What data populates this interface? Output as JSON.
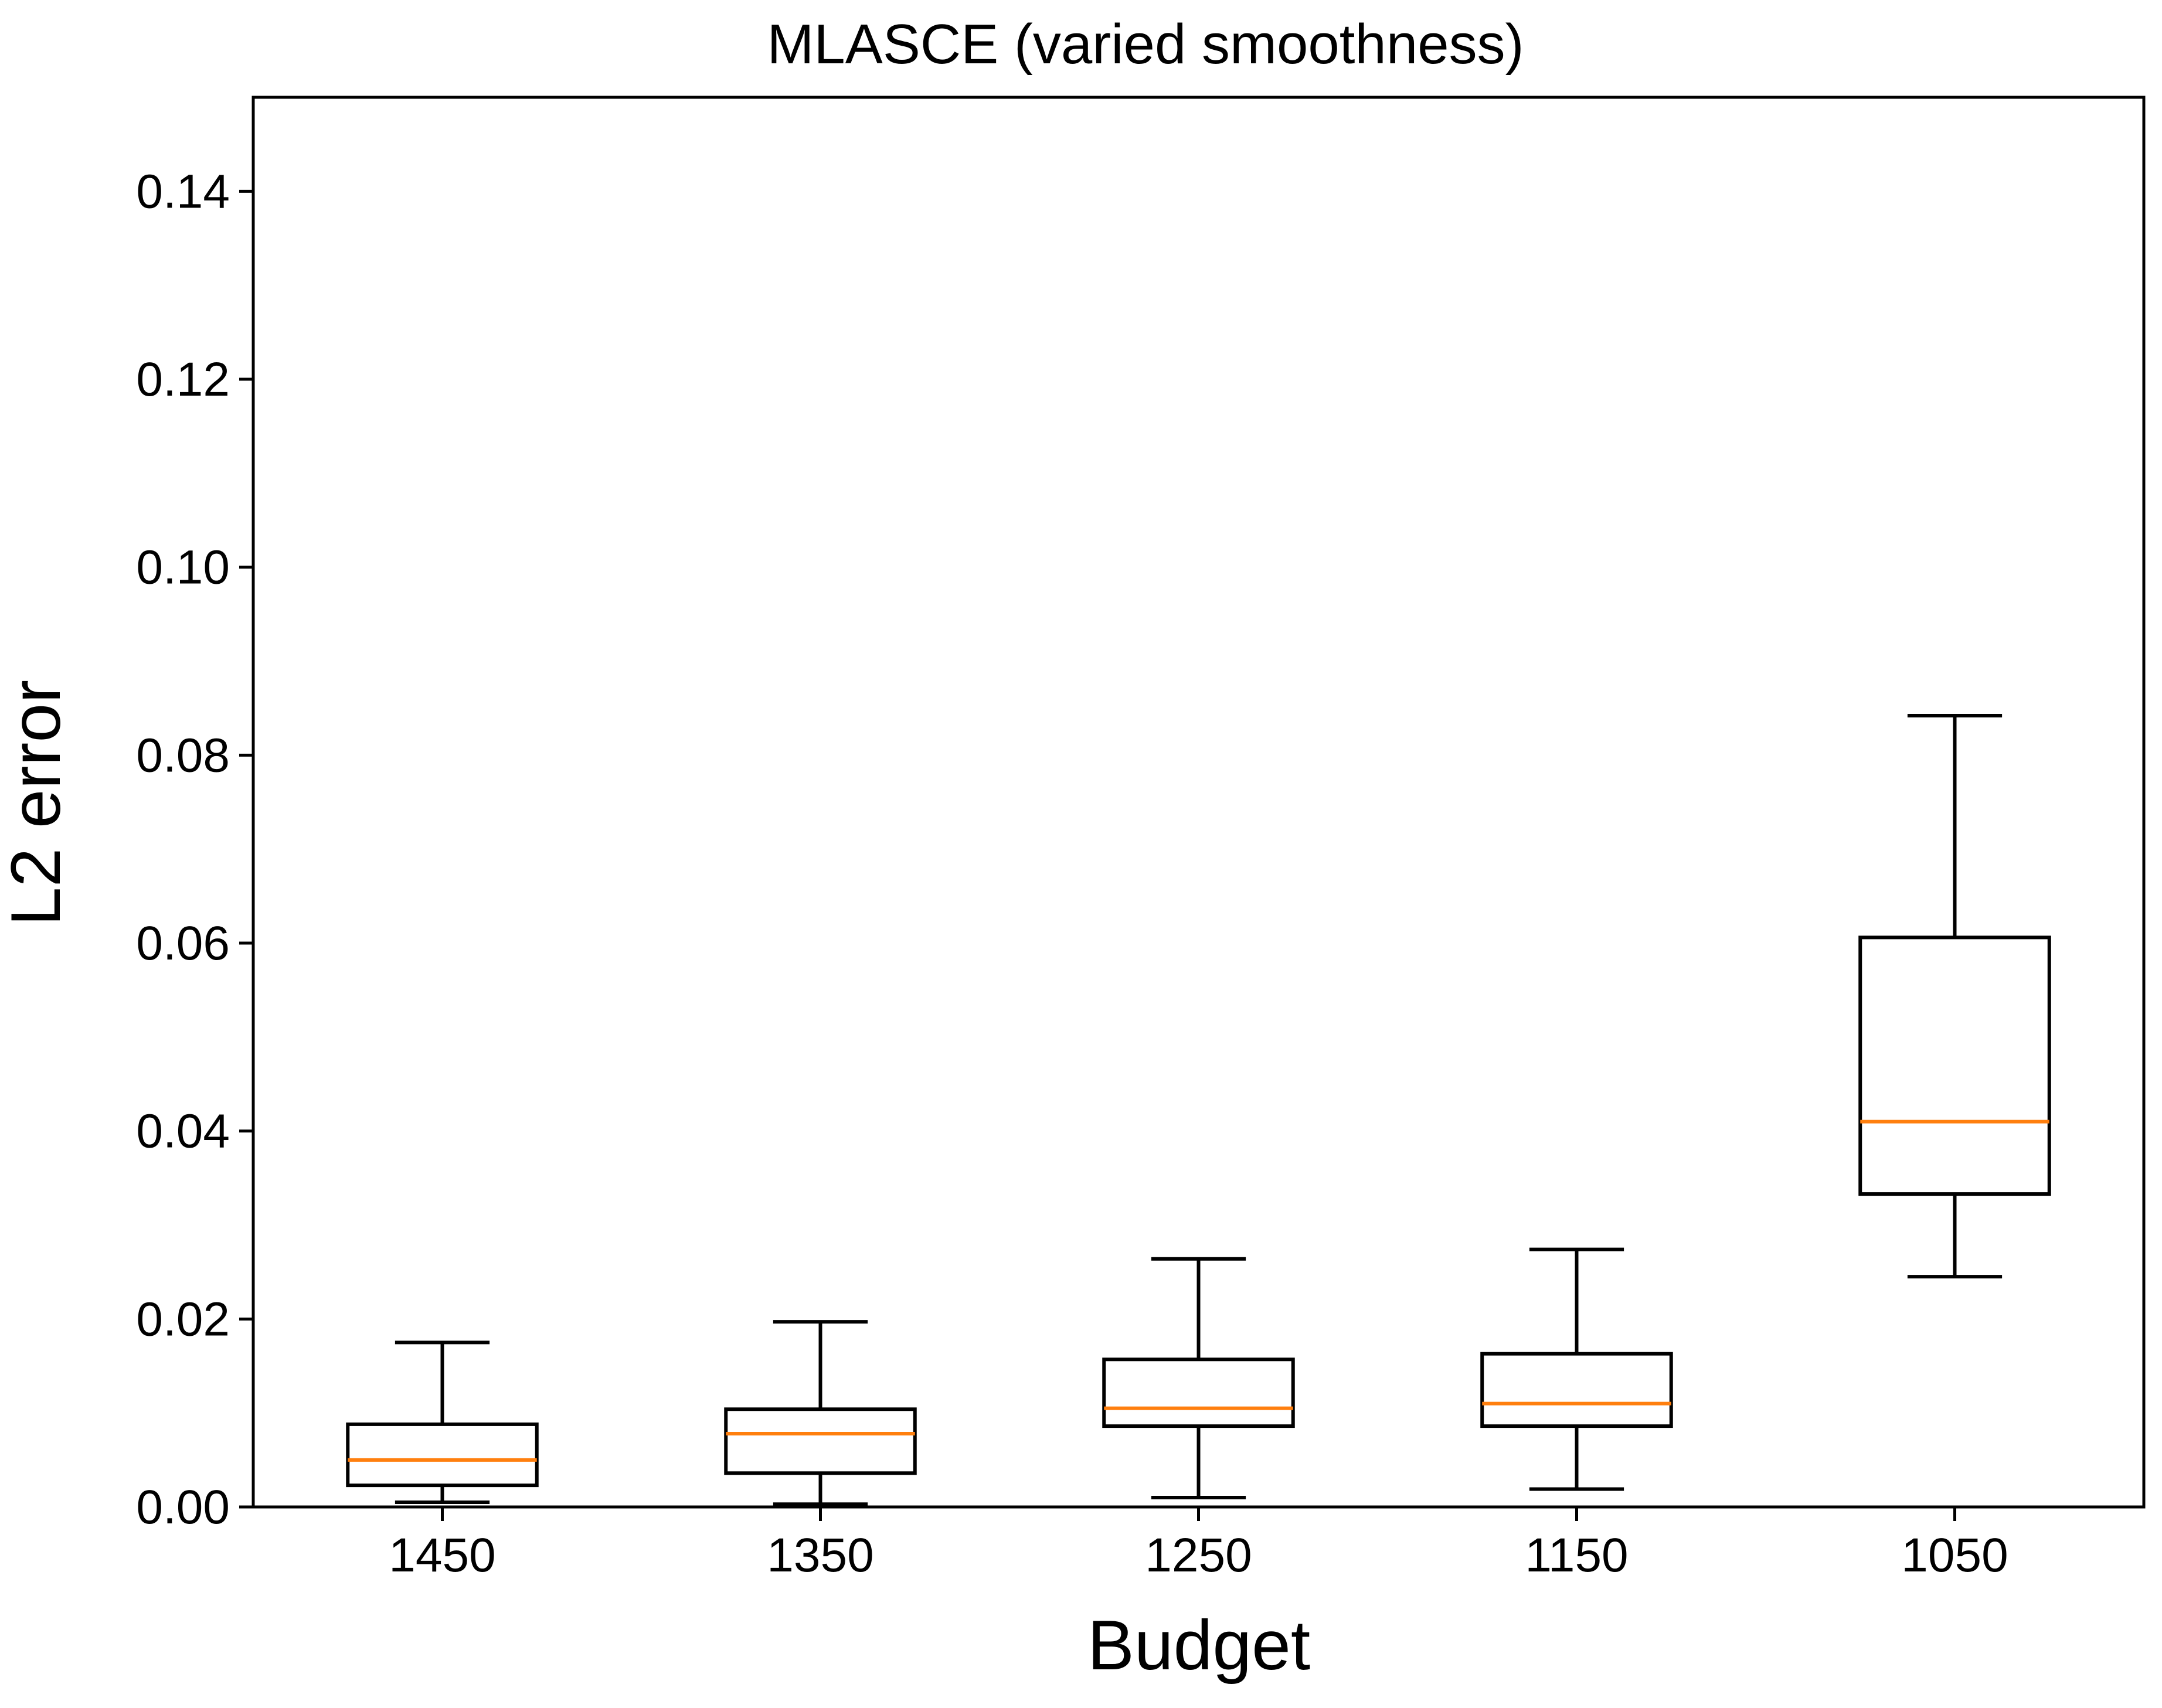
{
  "chart_data": {
    "type": "box",
    "title": "MLASCE (varied smoothness)",
    "xlabel": "Budget",
    "ylabel": "L2 error",
    "ylim": [
      0,
      0.15
    ],
    "yticks": [
      "0.00",
      "0.02",
      "0.04",
      "0.06",
      "0.08",
      "0.10",
      "0.12",
      "0.14"
    ],
    "categories": [
      "1450",
      "1350",
      "1250",
      "1150",
      "1050"
    ],
    "boxes": [
      {
        "category": "1450",
        "whisker_low": 0.0005,
        "q1": 0.0023,
        "median": 0.005,
        "q3": 0.0088,
        "whisker_high": 0.0175
      },
      {
        "category": "1350",
        "whisker_low": 0.0003,
        "q1": 0.0036,
        "median": 0.0078,
        "q3": 0.0104,
        "whisker_high": 0.0197
      },
      {
        "category": "1250",
        "whisker_low": 0.001,
        "q1": 0.0086,
        "median": 0.0105,
        "q3": 0.0157,
        "whisker_high": 0.0264
      },
      {
        "category": "1150",
        "whisker_low": 0.0019,
        "q1": 0.0086,
        "median": 0.011,
        "q3": 0.0163,
        "whisker_high": 0.0274
      },
      {
        "category": "1050",
        "whisker_low": 0.0245,
        "q1": 0.0333,
        "median": 0.041,
        "q3": 0.0606,
        "whisker_high": 0.0842
      }
    ],
    "colors": {
      "box": "#000000",
      "median": "#ff7f0e",
      "axes": "#000000"
    }
  }
}
